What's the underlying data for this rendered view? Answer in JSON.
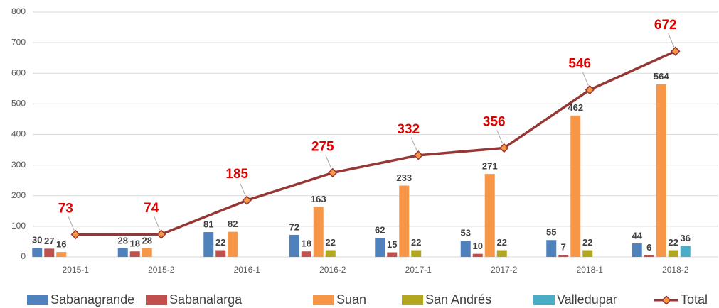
{
  "chart_data": {
    "type": "bar_line",
    "categories": [
      "2015-1",
      "2015-2",
      "2016-1",
      "2016-2",
      "2017-1",
      "2017-2",
      "2018-1",
      "2018-2"
    ],
    "series": [
      {
        "name": "Sabanagrande",
        "color": "#4f81bd",
        "values": [
          30,
          28,
          81,
          72,
          62,
          53,
          55,
          44
        ]
      },
      {
        "name": "Sabanalarga",
        "color": "#c0504d",
        "values": [
          27,
          18,
          22,
          18,
          15,
          10,
          7,
          6
        ]
      },
      {
        "name": "Suan",
        "color": "#f79646",
        "values": [
          16,
          28,
          82,
          163,
          233,
          271,
          462,
          564
        ]
      },
      {
        "name": "San Andrés",
        "color": "#b3a722",
        "values": [
          null,
          null,
          null,
          22,
          22,
          22,
          22,
          22
        ]
      },
      {
        "name": "Valledupar",
        "color": "#4bacc6",
        "values": [
          null,
          null,
          null,
          null,
          null,
          null,
          null,
          36
        ]
      },
      {
        "name": "Total",
        "color": "#953735",
        "type": "line",
        "values": [
          73,
          74,
          185,
          275,
          332,
          356,
          546,
          672
        ]
      }
    ],
    "ylim": [
      0,
      800
    ],
    "yticks": [
      0,
      100,
      200,
      300,
      400,
      500,
      600,
      700,
      800
    ],
    "grid": true,
    "legend": "bottom"
  }
}
